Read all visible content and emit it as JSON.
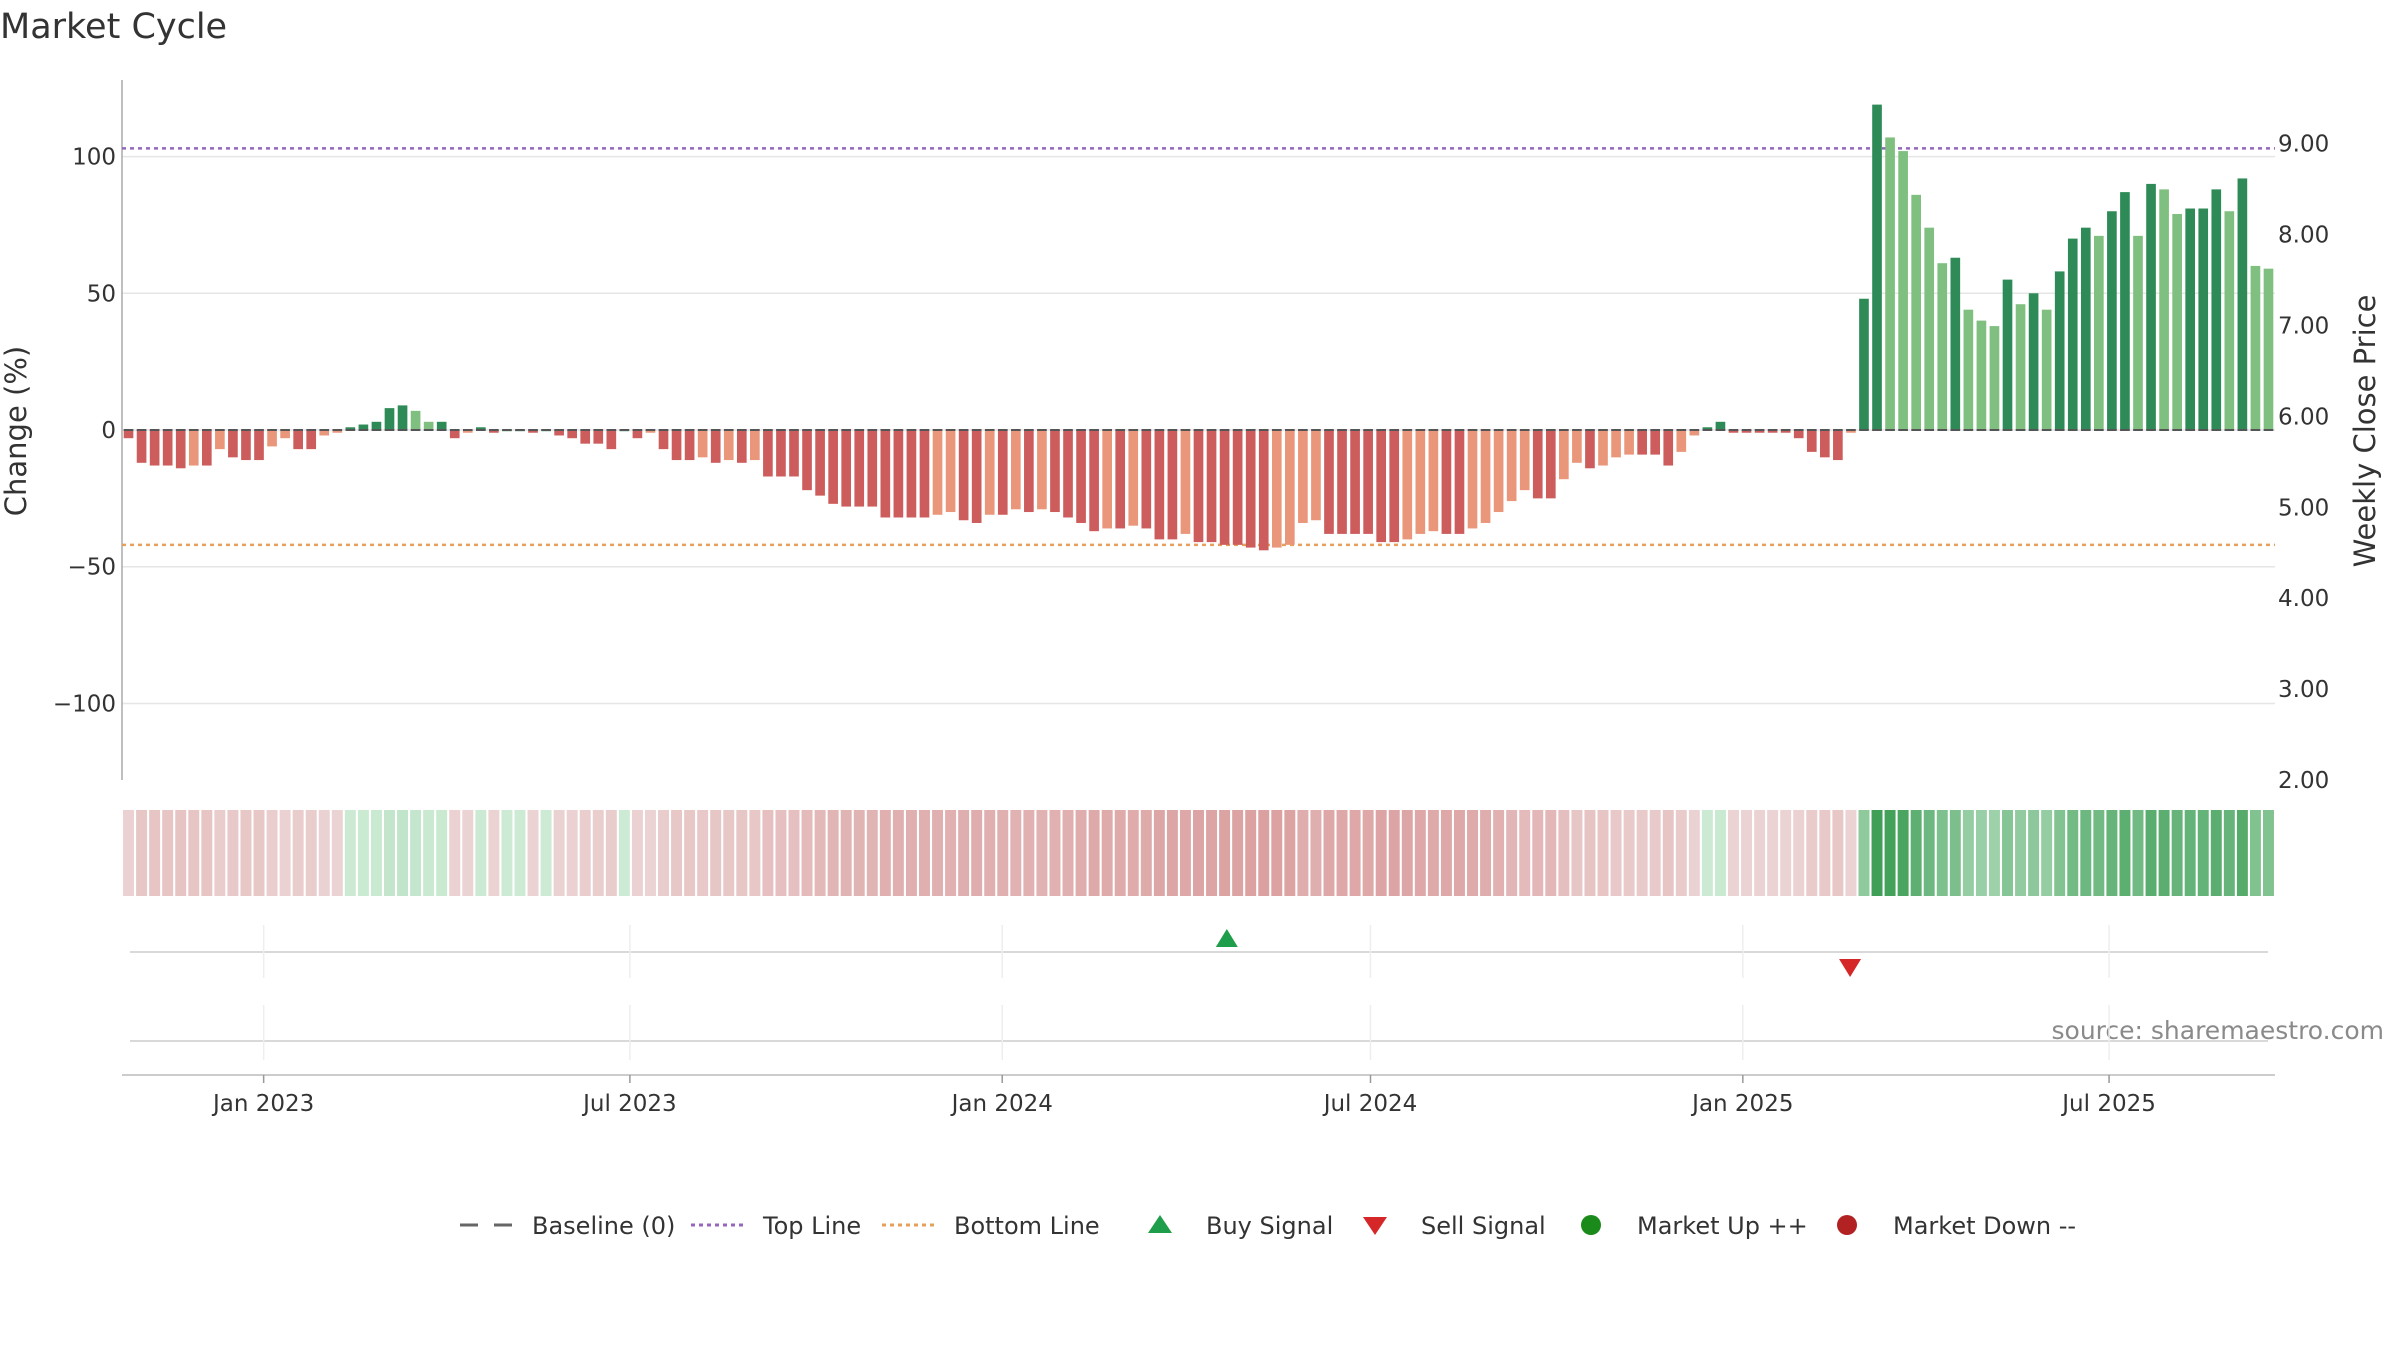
{
  "chart_data": {
    "type": "bar",
    "title": "Market Cycle",
    "ylabel_left": "Change (%)",
    "ylabel_right": "Weekly Close Price",
    "ylim_left": [
      -128,
      128
    ],
    "ylim_right": [
      2.0,
      9.7
    ],
    "yticks_left": [
      100,
      50,
      0,
      -50,
      -100
    ],
    "yticks_left_labels": [
      "100",
      "50",
      "0",
      "−50",
      "−100"
    ],
    "yticks_right": [
      9.0,
      8.0,
      7.0,
      6.0,
      5.0,
      4.0,
      3.0,
      2.0
    ],
    "yticks_right_labels": [
      "9.00",
      "8.00",
      "7.00",
      "6.00",
      "5.00",
      "4.00",
      "3.00",
      "2.00"
    ],
    "x_start_date": "2022-10-23",
    "x_end_date": "2025-09-21",
    "xticks": [
      {
        "date": "2023-01-01",
        "label": "Jan 2023"
      },
      {
        "date": "2023-07-01",
        "label": "Jul 2023"
      },
      {
        "date": "2024-01-01",
        "label": "Jan 2024"
      },
      {
        "date": "2024-07-01",
        "label": "Jul 2024"
      },
      {
        "date": "2025-01-01",
        "label": "Jan 2025"
      },
      {
        "date": "2025-07-01",
        "label": "Jul 2025"
      }
    ],
    "reference_lines": {
      "top_line": 103,
      "bottom_line": -42,
      "baseline": 0
    },
    "weekly_change_pct": [
      -3,
      -12,
      -13,
      -13,
      -14,
      -13,
      -13,
      -7,
      -10,
      -11,
      -11,
      -6,
      -3,
      -7,
      -7,
      -2,
      -1,
      1,
      2,
      3,
      8,
      9,
      7,
      3,
      3,
      -3,
      -1,
      1,
      -1,
      0,
      0,
      -1,
      0,
      -2,
      -3,
      -5,
      -5,
      -7,
      0,
      -3,
      -1,
      -7,
      -11,
      -11,
      -10,
      -12,
      -11,
      -12,
      -11,
      -17,
      -17,
      -17,
      -22,
      -24,
      -27,
      -28,
      -28,
      -28,
      -32,
      -32,
      -32,
      -32,
      -31,
      -30,
      -33,
      -34,
      -31,
      -31,
      -29,
      -30,
      -29,
      -30,
      -32,
      -34,
      -37,
      -36,
      -36,
      -35,
      -36,
      -40,
      -40,
      -38,
      -41,
      -41,
      -42,
      -42,
      -43,
      -44,
      -43,
      -42,
      -34,
      -33,
      -38,
      -38,
      -38,
      -38,
      -41,
      -41,
      -40,
      -38,
      -37,
      -38,
      -38,
      -36,
      -34,
      -30,
      -26,
      -22,
      -25,
      -25,
      -18,
      -12,
      -14,
      -13,
      -10,
      -9,
      -9,
      -9,
      -13,
      -8,
      -2,
      1,
      3,
      -1,
      -1,
      -1,
      -1,
      -1,
      -3,
      -8,
      -10,
      -11,
      -1,
      48,
      119,
      107,
      102,
      86,
      74,
      61,
      63,
      44,
      40,
      38,
      55,
      46,
      50,
      44,
      58,
      70,
      74,
      71,
      80,
      87,
      71,
      90,
      88,
      79,
      81,
      81,
      88,
      80,
      92,
      60,
      59
    ],
    "trend_band_colors": {
      "down_light": "#ecd4d4",
      "down_dark": "#d99a9a",
      "up_light": "#cdebd4",
      "up_dark": "#3f9f57"
    },
    "signals": [
      {
        "type": "buy",
        "date": "2024-04-21",
        "label": "Buy Signal",
        "marker": "triangle-up",
        "color": "#1e9e4a"
      },
      {
        "type": "sell",
        "date": "2025-02-23",
        "label": "Sell Signal",
        "marker": "triangle-down",
        "color": "#d62728"
      }
    ],
    "colors": {
      "up_strong": "#2e8b57",
      "up_weak": "#7fbf7f",
      "down_strong": "#cd5c5c",
      "down_weak": "#e9967a",
      "top_line": "#9467bd",
      "bottom_line": "#e5a05c",
      "baseline": "#555555",
      "grid": "#e6e6e6"
    },
    "legend": [
      {
        "label": "Baseline (0)",
        "marker": "dash",
        "color": "#666666"
      },
      {
        "label": "Top Line",
        "marker": "dotted",
        "color": "#9467bd"
      },
      {
        "label": "Bottom Line",
        "marker": "dotted",
        "color": "#e5a05c"
      },
      {
        "label": "Buy Signal",
        "marker": "triangle-up",
        "color": "#1e9e4a"
      },
      {
        "label": "Sell Signal",
        "marker": "triangle-down",
        "color": "#d62728"
      },
      {
        "label": "Market Up ++",
        "marker": "circle",
        "color": "#1a8a1a"
      },
      {
        "label": "Market Down --",
        "marker": "circle",
        "color": "#b22222"
      }
    ],
    "legend_placement": "bottom-center",
    "grid": true,
    "source_text": "source: sharemaestro.com"
  }
}
